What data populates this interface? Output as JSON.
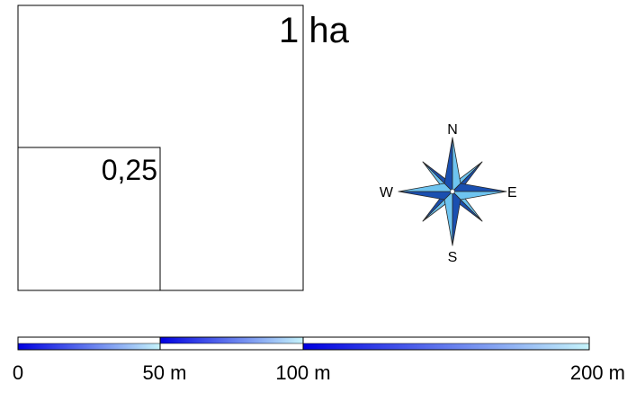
{
  "areas": {
    "large_label": "1 ha",
    "small_label": "0,25"
  },
  "compass": {
    "north": "N",
    "east": "E",
    "south": "S",
    "west": "W"
  },
  "scalebar": {
    "tick_labels": [
      "0",
      "50 m",
      "100 m",
      "200 m"
    ],
    "colors": {
      "dark": "#0000e0",
      "light": "#c6f4fb",
      "outline": "#000000"
    }
  },
  "compass_colors": {
    "dark_blue": "#1a4fb0",
    "light_blue": "#6ec4f0",
    "outline": "#2a2a2a"
  }
}
